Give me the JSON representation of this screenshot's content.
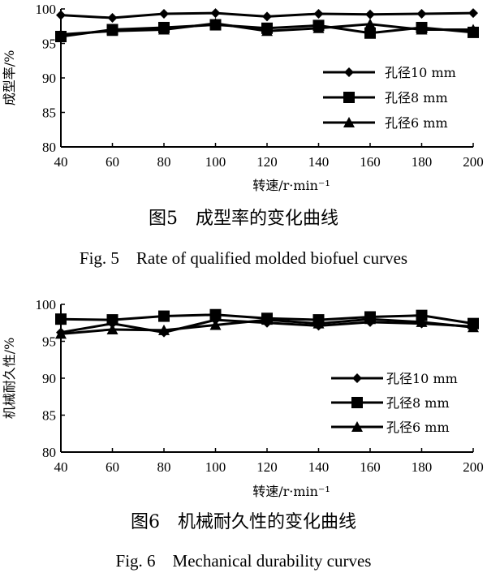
{
  "chart_data": [
    {
      "type": "line",
      "ylabel": "成型率/%",
      "xlabel": "转速/r·min⁻¹",
      "xlim": [
        40,
        200
      ],
      "ylim": [
        80,
        100
      ],
      "x_ticks": [
        "40",
        "60",
        "80",
        "100",
        "120",
        "140",
        "160",
        "180",
        "200"
      ],
      "y_ticks": [
        "80",
        "85",
        "90",
        "95",
        "100"
      ],
      "legend_position": "middle-right",
      "grid": false,
      "caption_cn": "图5　成型率的变化曲线",
      "caption_en": "Fig. 5　Rate of qualified molded biofuel curves",
      "x": [
        40,
        60,
        80,
        100,
        120,
        140,
        160,
        180,
        200
      ],
      "series": [
        {
          "name": "孔径10 mm",
          "marker": "diamond",
          "values": [
            99.1,
            98.7,
            99.3,
            99.4,
            98.9,
            99.3,
            99.2,
            99.3,
            99.4
          ]
        },
        {
          "name": "孔径8 mm",
          "marker": "square",
          "values": [
            96.0,
            97.0,
            97.3,
            97.7,
            97.2,
            97.6,
            96.5,
            97.3,
            96.6
          ]
        },
        {
          "name": "孔径6 mm",
          "marker": "triangle",
          "values": [
            96.3,
            96.8,
            97.0,
            97.9,
            96.8,
            97.2,
            97.8,
            97.0,
            97.0
          ]
        }
      ]
    },
    {
      "type": "line",
      "ylabel": "机械耐久性/%",
      "xlabel": "转速/r·min⁻¹",
      "xlim": [
        40,
        200
      ],
      "ylim": [
        80,
        100
      ],
      "x_ticks": [
        "40",
        "60",
        "80",
        "100",
        "120",
        "140",
        "160",
        "180",
        "200"
      ],
      "y_ticks": [
        "80",
        "85",
        "90",
        "95",
        "100"
      ],
      "legend_position": "middle-right",
      "grid": false,
      "caption_cn": "图6　机械耐久性的变化曲线",
      "caption_en": "Fig. 6　Mechanical durability curves",
      "x": [
        40,
        60,
        80,
        100,
        120,
        140,
        160,
        180,
        200
      ],
      "series": [
        {
          "name": "孔径10 mm",
          "marker": "diamond",
          "values": [
            96.2,
            97.4,
            96.2,
            97.9,
            97.5,
            97.1,
            97.6,
            97.4,
            97.0
          ]
        },
        {
          "name": "孔径8 mm",
          "marker": "square",
          "values": [
            98.0,
            97.9,
            98.4,
            98.6,
            98.1,
            97.9,
            98.3,
            98.5,
            97.4
          ]
        },
        {
          "name": "孔径6 mm",
          "marker": "triangle",
          "values": [
            96.0,
            96.6,
            96.5,
            97.2,
            97.9,
            97.4,
            98.0,
            97.6,
            96.9
          ]
        }
      ]
    }
  ]
}
